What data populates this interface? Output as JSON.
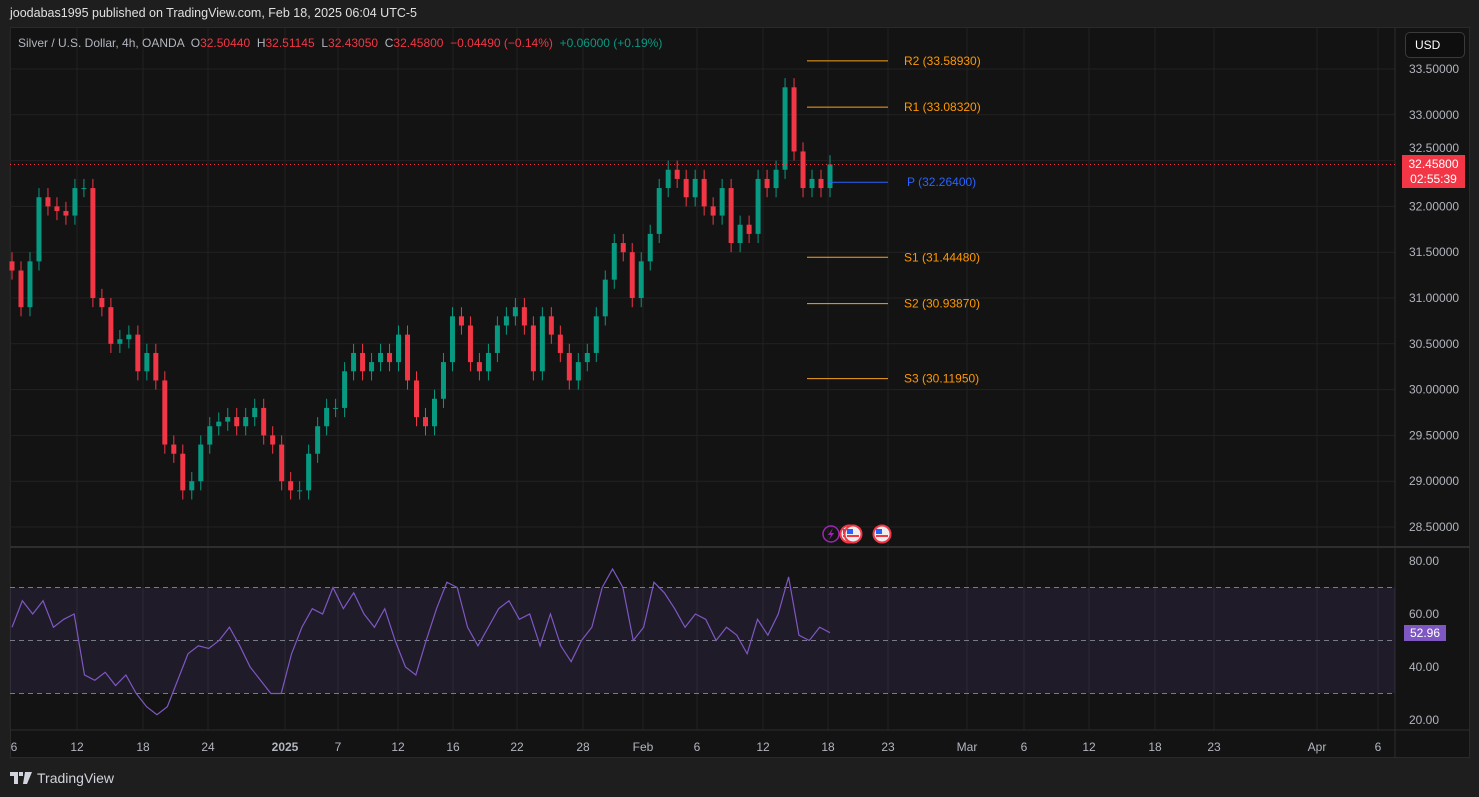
{
  "publisher": "joodabas1995 published on TradingView.com, Feb 18, 2025 06:04 UTC-5",
  "legend": {
    "symbol": "Silver / U.S. Dollar, 4h, OANDA",
    "o_label": "O",
    "o": "32.50440",
    "h_label": "H",
    "h": "32.51145",
    "l_label": "L",
    "l": "32.43050",
    "c_label": "C",
    "c": "32.45800",
    "change": "−0.04490 (−0.14%)",
    "change2": "+0.06000 (+0.19%)"
  },
  "currency_button": "USD",
  "price_badge": {
    "price": "32.45800",
    "countdown": "02:55:39"
  },
  "rsi_badge": "52.96",
  "colors": {
    "up": "#089981",
    "down": "#f23645",
    "pivot": "#2962ff",
    "levels": "#f7a21b",
    "rsi": "#7e57c2"
  },
  "event_icons": [
    "lightning-icon",
    "us-flag-icon",
    "us-flag-icon",
    "us-flag-icon"
  ],
  "footer": {
    "brand": "TradingView"
  },
  "chart_data": [
    {
      "type": "candlestick",
      "yticks": [
        "33.50000",
        "33.00000",
        "32.50000",
        "32.00000",
        "31.50000",
        "31.00000",
        "30.50000",
        "30.00000",
        "29.50000",
        "29.00000",
        "28.50000"
      ],
      "ylim": [
        28.4,
        33.9
      ],
      "xticks": [
        "6",
        "12",
        "18",
        "24",
        "2025",
        "7",
        "12",
        "16",
        "22",
        "28",
        "Feb",
        "6",
        "12",
        "18",
        "23",
        "Mar",
        "6",
        "12",
        "18",
        "23",
        "Apr",
        "6"
      ],
      "closes": [
        31.3,
        30.9,
        31.4,
        32.1,
        32.0,
        31.95,
        31.9,
        32.2,
        32.2,
        31.0,
        30.9,
        30.5,
        30.55,
        30.6,
        30.2,
        30.4,
        30.1,
        29.4,
        29.3,
        28.9,
        29.0,
        29.4,
        29.6,
        29.65,
        29.7,
        29.6,
        29.7,
        29.8,
        29.5,
        29.4,
        29.0,
        28.9,
        28.9,
        29.3,
        29.6,
        29.8,
        29.8,
        30.2,
        30.4,
        30.2,
        30.3,
        30.4,
        30.3,
        30.6,
        30.1,
        29.7,
        29.6,
        29.9,
        30.3,
        30.8,
        30.7,
        30.3,
        30.2,
        30.4,
        30.7,
        30.8,
        30.9,
        30.7,
        30.2,
        30.8,
        30.6,
        30.4,
        30.1,
        30.3,
        30.4,
        30.8,
        31.2,
        31.6,
        31.5,
        31.0,
        31.4,
        31.7,
        32.2,
        32.4,
        32.3,
        32.1,
        32.3,
        32.0,
        31.9,
        32.2,
        31.6,
        31.8,
        31.7,
        32.3,
        32.2,
        32.4,
        33.3,
        32.6,
        32.2,
        32.3,
        32.2,
        32.458
      ],
      "current_price": 32.458,
      "pivots": [
        {
          "label": "R2 (33.58930)",
          "value": 33.5893
        },
        {
          "label": "R1 (33.08320)",
          "value": 33.0832
        },
        {
          "label": "P (32.26400)",
          "value": 32.264
        },
        {
          "label": "S1 (31.44480)",
          "value": 31.4448
        },
        {
          "label": "S2 (30.93870)",
          "value": 30.9387
        },
        {
          "label": "S3 (30.11950)",
          "value": 30.1195
        }
      ]
    },
    {
      "type": "line",
      "name": "RSI",
      "yticks": [
        "80.00",
        "60.00",
        "40.00",
        "20.00"
      ],
      "ylim": [
        15,
        83
      ],
      "bands": [
        70,
        50,
        30
      ],
      "values": [
        55,
        65,
        60,
        65,
        55,
        58,
        60,
        37,
        35,
        38,
        33,
        37,
        30,
        25,
        22,
        25,
        35,
        45,
        48,
        47,
        50,
        55,
        48,
        40,
        35,
        30,
        30,
        45,
        55,
        62,
        60,
        70,
        62,
        68,
        60,
        55,
        62,
        50,
        40,
        37,
        50,
        62,
        72,
        70,
        55,
        48,
        55,
        62,
        65,
        58,
        60,
        48,
        60,
        48,
        42,
        50,
        55,
        70,
        77,
        70,
        50,
        55,
        72,
        68,
        62,
        55,
        60,
        58,
        50,
        55,
        52,
        45,
        58,
        52,
        60,
        74,
        52,
        50,
        55,
        52.96
      ]
    }
  ]
}
